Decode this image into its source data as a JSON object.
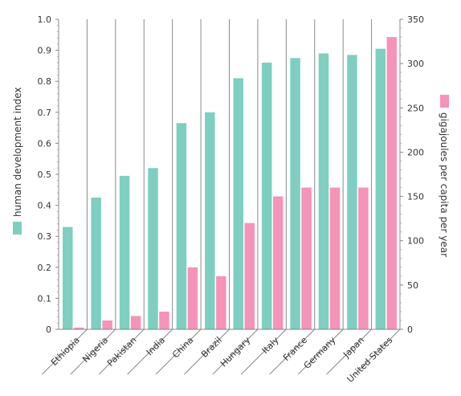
{
  "chart_data": {
    "type": "bar",
    "categories": [
      "Ethiopia",
      "Nigeria",
      "Pakistan",
      "India",
      "China",
      "Brazil",
      "Hungary",
      "Italy",
      "France",
      "Germany",
      "Japan",
      "United States"
    ],
    "series": [
      {
        "name": "human development index",
        "axis": "left",
        "color": "#7ecfc0",
        "values": [
          0.33,
          0.425,
          0.495,
          0.52,
          0.665,
          0.7,
          0.81,
          0.86,
          0.875,
          0.89,
          0.885,
          0.905
        ]
      },
      {
        "name": "gigajoules per capita per year",
        "axis": "right",
        "color": "#f593b8",
        "values": [
          2,
          10,
          15,
          20,
          70,
          60,
          120,
          150,
          160,
          160,
          160,
          330
        ]
      }
    ],
    "y_left": {
      "label": "human development index",
      "min": 0,
      "max": 1.0,
      "ticks": [
        "0",
        "0.1",
        "0.2",
        "0.3",
        "0.4",
        "0.5",
        "0.6",
        "0.7",
        "0.8",
        "0.9",
        "1.0"
      ]
    },
    "y_right": {
      "label": "gigajoules per capita per year",
      "min": 0,
      "max": 350,
      "ticks": [
        "0",
        "50",
        "100",
        "150",
        "200",
        "250",
        "300",
        "350"
      ]
    },
    "grid": "vertical separators",
    "legend": "axis titles with color swatches"
  }
}
